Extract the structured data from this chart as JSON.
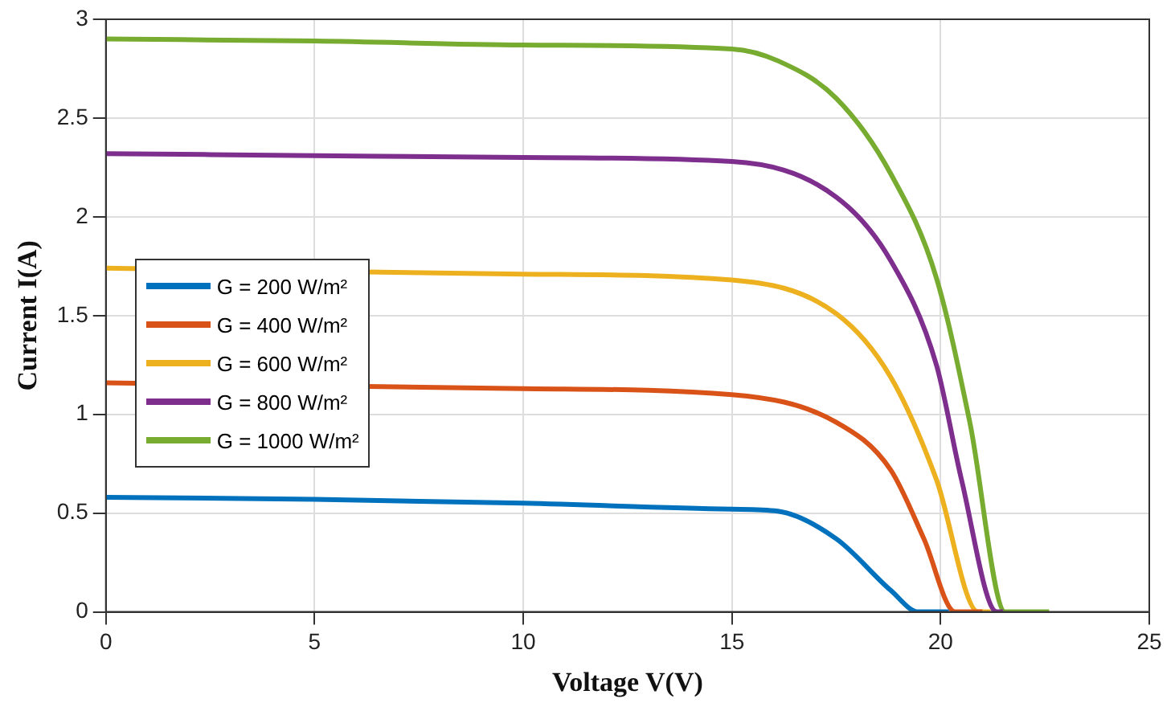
{
  "chart_data": {
    "type": "line",
    "xlabel": "Voltage V(V)",
    "ylabel": "Current I(A)",
    "xlim": [
      0,
      25
    ],
    "xticks": [
      0,
      5,
      10,
      15,
      20,
      25
    ],
    "ylim": [
      0,
      3
    ],
    "yticks": [
      0,
      0.5,
      1,
      1.5,
      2,
      2.5,
      3
    ],
    "grid": true,
    "legend": "left",
    "marker": "none",
    "line_style": "solid",
    "series": [
      {
        "name": "G = 200 W/m²",
        "color": "#0072bd",
        "x": [
          0,
          5,
          10,
          15,
          16.1,
          17.5,
          18.8,
          19.47,
          20.2
        ],
        "values": [
          0.58,
          0.57,
          0.55,
          0.52,
          0.51,
          0.37,
          0.11,
          0,
          0
        ]
      },
      {
        "name": "G = 400 W/m²",
        "color": "#d95319",
        "x": [
          0,
          10,
          15,
          17.5,
          18.8,
          19.6,
          20.35,
          21
        ],
        "values": [
          1.16,
          1.13,
          1.1,
          0.96,
          0.72,
          0.37,
          0,
          0
        ]
      },
      {
        "name": "G = 600 W/m²",
        "color": "#edb120",
        "x": [
          0,
          10,
          15,
          17.5,
          18.8,
          19.9,
          20.9,
          21.2
        ],
        "values": [
          1.74,
          1.71,
          1.68,
          1.51,
          1.19,
          0.67,
          0,
          0
        ]
      },
      {
        "name": "G = 800 W/m²",
        "color": "#7e2f8e",
        "x": [
          0,
          5,
          10,
          15,
          17.5,
          18.8,
          19.9,
          20.5,
          21.35,
          21.5
        ],
        "values": [
          2.32,
          2.31,
          2.3,
          2.28,
          2.1,
          1.78,
          1.25,
          0.67,
          0,
          0
        ]
      },
      {
        "name": "G = 1000 W/m²",
        "color": "#77ac30",
        "x": [
          0,
          5,
          10,
          15,
          16.1,
          17.5,
          18.8,
          19.9,
          20.7,
          21.55,
          22.6
        ],
        "values": [
          2.9,
          2.89,
          2.87,
          2.85,
          2.79,
          2.6,
          2.22,
          1.69,
          0.96,
          0,
          0
        ]
      }
    ]
  }
}
